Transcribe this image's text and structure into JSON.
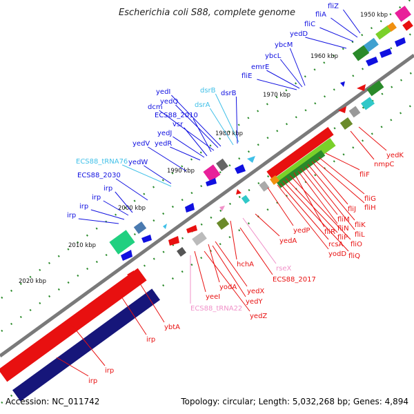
{
  "title": "Escherichia coli S88, complete genome",
  "footer": {
    "accession": "Accession: NC_011742",
    "summary": "Topology: circular; Length: 5,032,268 bp; Genes: 4,894"
  },
  "colors": {
    "plus_gene": "#1010e0",
    "minus_gene": "#e81010",
    "trna_plus": "#40c0e8",
    "trna_minus": "#f090c8",
    "backbone": "#888888",
    "tick": "#2a8a2a",
    "dark_navy": "#16167a",
    "lime": "#7ad02a",
    "teal": "#30c8c8",
    "magenta": "#e8209a",
    "orange": "#f09010",
    "olive": "#6a8a2a"
  },
  "kbp_labels": [
    "1950 kbp",
    "1960 kbp",
    "1970 kbp",
    "1980 kbp",
    "1990 kbp",
    "2000 kbp",
    "2010 kbp",
    "2020 kbp"
  ],
  "labels_top": [
    {
      "text": "fliZ",
      "type": "plus"
    },
    {
      "text": "fliA",
      "type": "plus"
    },
    {
      "text": "fliC",
      "type": "plus"
    },
    {
      "text": "yedD",
      "type": "plus"
    },
    {
      "text": "ybcM",
      "type": "plus"
    },
    {
      "text": "ybcL",
      "type": "plus"
    },
    {
      "text": "emrE",
      "type": "plus"
    },
    {
      "text": "fliE",
      "type": "plus"
    },
    {
      "text": "yedI",
      "type": "plus"
    },
    {
      "text": "dsrB",
      "type": "trna"
    },
    {
      "text": "dsrB",
      "type": "plus"
    },
    {
      "text": "yedQ",
      "type": "plus"
    },
    {
      "text": "dsrA",
      "type": "trna"
    },
    {
      "text": "dcm",
      "type": "plus"
    },
    {
      "text": "ECS88_2010",
      "type": "plus"
    },
    {
      "text": "vsr",
      "type": "plus"
    },
    {
      "text": "yedJ",
      "type": "plus"
    },
    {
      "text": "yedV",
      "type": "plus"
    },
    {
      "text": "yedR",
      "type": "plus"
    },
    {
      "text": "ECS88_tRNA76",
      "type": "trna"
    },
    {
      "text": "yedW",
      "type": "plus"
    },
    {
      "text": "ECS88_2030",
      "type": "plus"
    },
    {
      "text": "irp",
      "type": "plus"
    },
    {
      "text": "irp",
      "type": "plus"
    },
    {
      "text": "irp",
      "type": "plus"
    },
    {
      "text": "irp",
      "type": "plus"
    }
  ],
  "labels_bottom": [
    {
      "text": "yedK",
      "type": "minus"
    },
    {
      "text": "nmpC",
      "type": "minus"
    },
    {
      "text": "fliF",
      "type": "minus"
    },
    {
      "text": "fliG",
      "type": "minus"
    },
    {
      "text": "fliH",
      "type": "minus"
    },
    {
      "text": "fliJ",
      "type": "minus"
    },
    {
      "text": "fliK",
      "type": "minus"
    },
    {
      "text": "fliL",
      "type": "minus"
    },
    {
      "text": "fliM",
      "type": "minus"
    },
    {
      "text": "fliN",
      "type": "minus"
    },
    {
      "text": "yedP",
      "type": "minus"
    },
    {
      "text": "fliR",
      "type": "minus"
    },
    {
      "text": "fliO",
      "type": "minus"
    },
    {
      "text": "fliP",
      "type": "minus"
    },
    {
      "text": "fliQ",
      "type": "minus"
    },
    {
      "text": "rcsA",
      "type": "minus"
    },
    {
      "text": "yodD",
      "type": "minus"
    },
    {
      "text": "yedA",
      "type": "minus"
    },
    {
      "text": "rseX",
      "type": "trna_minus"
    },
    {
      "text": "hchA",
      "type": "minus"
    },
    {
      "text": "ECS88_2017",
      "type": "minus"
    },
    {
      "text": "yedX",
      "type": "minus"
    },
    {
      "text": "yodA",
      "type": "minus"
    },
    {
      "text": "yedY",
      "type": "minus"
    },
    {
      "text": "yeeI",
      "type": "minus"
    },
    {
      "text": "yedZ",
      "type": "minus"
    },
    {
      "text": "ECS88_tRNA22",
      "type": "trna_minus"
    },
    {
      "text": "ybtA",
      "type": "minus"
    },
    {
      "text": "irp",
      "type": "minus"
    },
    {
      "text": "irp",
      "type": "minus"
    },
    {
      "text": "irp",
      "type": "minus"
    }
  ]
}
